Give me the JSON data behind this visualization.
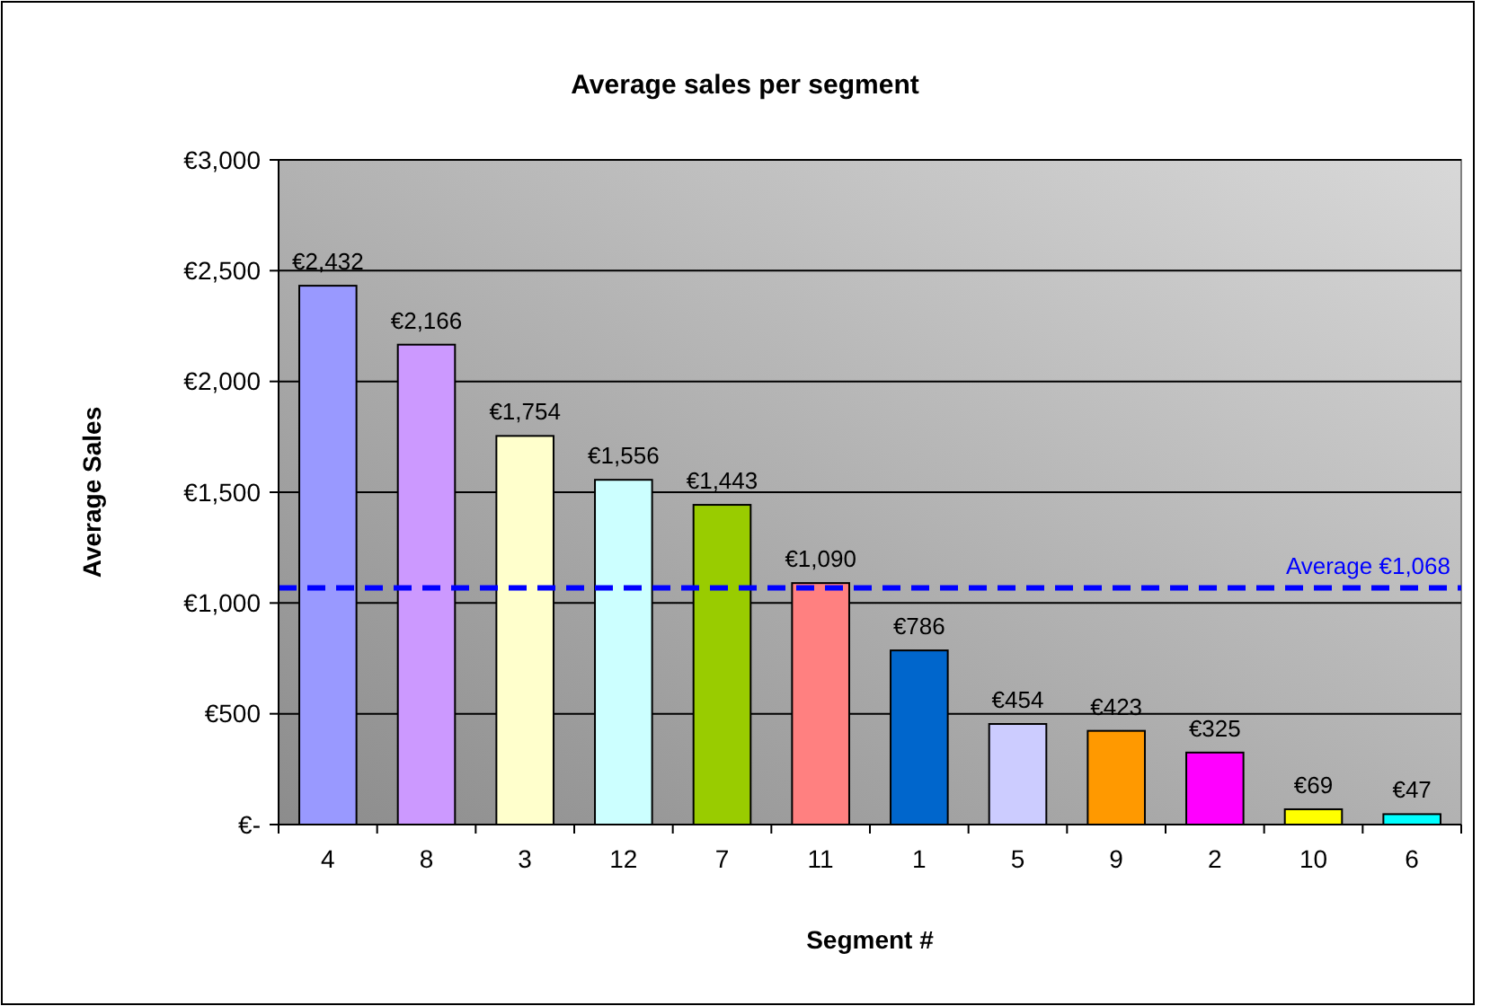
{
  "chart_data": {
    "type": "bar",
    "title": "Average sales per segment",
    "xlabel": "Segment #",
    "ylabel": "Average Sales",
    "categories": [
      "4",
      "8",
      "3",
      "12",
      "7",
      "11",
      "1",
      "5",
      "9",
      "2",
      "10",
      "6"
    ],
    "values": [
      2432,
      2166,
      1754,
      1556,
      1443,
      1090,
      786,
      454,
      423,
      325,
      69,
      47
    ],
    "colors": [
      "#9999ff",
      "#cc99ff",
      "#ffffcc",
      "#ccffff",
      "#99cc00",
      "#ff8080",
      "#0066cc",
      "#ccccff",
      "#ff9900",
      "#ff00ff",
      "#ffff00",
      "#00ffff"
    ],
    "value_labels": [
      "€2,432",
      "€2,166",
      "€1,754",
      "€1,556",
      "€1,443",
      "€1,090",
      "€786",
      "€454",
      "€423",
      "€325",
      "€69",
      "€47"
    ],
    "ylim": [
      0,
      3000
    ],
    "yticks": [
      {
        "value": 0,
        "label": "€-"
      },
      {
        "value": 500,
        "label": "€500"
      },
      {
        "value": 1000,
        "label": "€1,000"
      },
      {
        "value": 1500,
        "label": "€1,500"
      },
      {
        "value": 2000,
        "label": "€2,000"
      },
      {
        "value": 2500,
        "label": "€2,500"
      },
      {
        "value": 3000,
        "label": "€3,000"
      }
    ],
    "grid": "y",
    "ref_lines": [
      {
        "axis": "y",
        "value": 1068,
        "label": "Average €1,068",
        "color": "#0000ff",
        "line_style": "dashed"
      }
    ]
  }
}
